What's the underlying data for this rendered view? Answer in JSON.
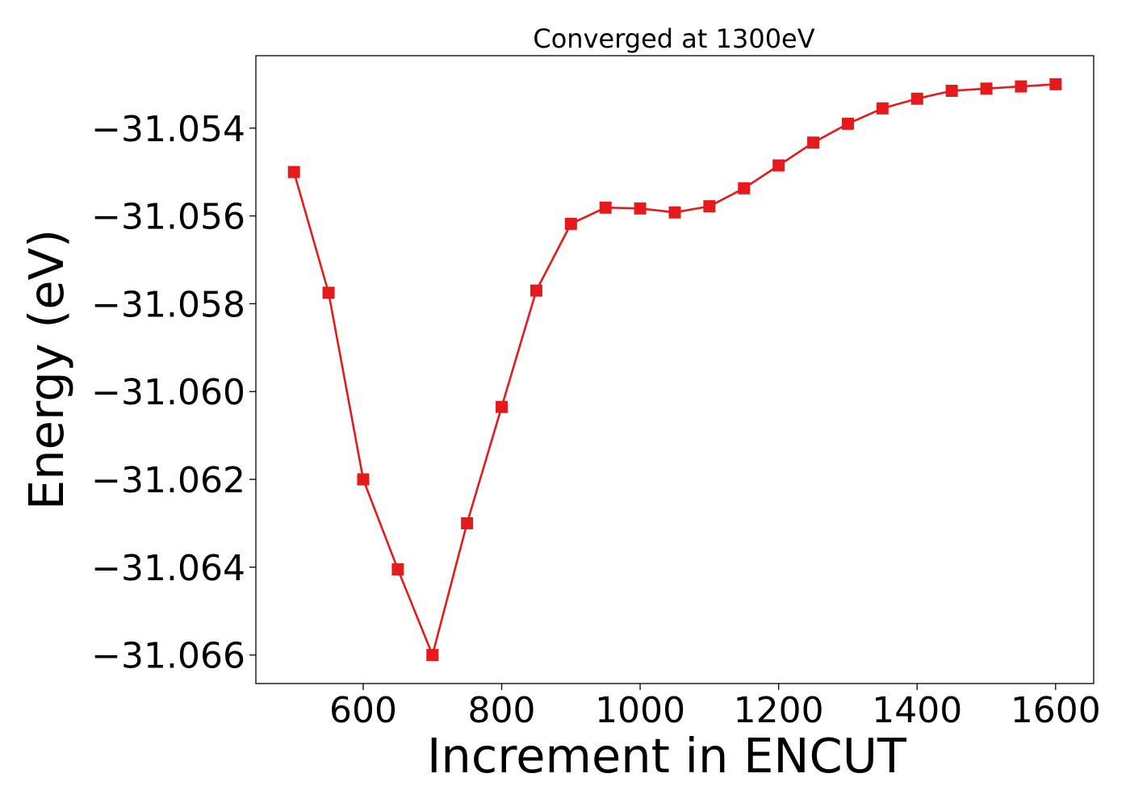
{
  "chart_data": {
    "type": "line",
    "title": "Converged at 1300eV",
    "xlabel": "Increment in ENCUT",
    "ylabel": "Energy (eV)",
    "xlim": [
      445,
      1655
    ],
    "ylim": [
      -31.06665,
      -31.05235
    ],
    "xticks": [
      600,
      800,
      1000,
      1200,
      1400,
      1600
    ],
    "xtick_labels": [
      "600",
      "800",
      "1000",
      "1200",
      "1400",
      "1600"
    ],
    "yticks": [
      -31.054,
      -31.056,
      -31.058,
      -31.06,
      -31.062,
      -31.064,
      -31.066
    ],
    "ytick_labels": [
      "−31.054",
      "−31.056",
      "−31.058",
      "−31.060",
      "−31.062",
      "−31.064",
      "−31.066"
    ],
    "grid": false,
    "legend": false,
    "series": [
      {
        "color": "#e41a1c",
        "marker": "square",
        "x": [
          500,
          550,
          600,
          650,
          700,
          750,
          800,
          850,
          900,
          950,
          1000,
          1050,
          1100,
          1150,
          1200,
          1250,
          1300,
          1350,
          1400,
          1450,
          1500,
          1550,
          1600
        ],
        "y": [
          -31.055,
          -31.05775,
          -31.062,
          -31.06405,
          -31.066,
          -31.063,
          -31.06035,
          -31.0577,
          -31.05618,
          -31.05581,
          -31.05583,
          -31.05592,
          -31.05578,
          -31.05537,
          -31.05485,
          -31.05433,
          -31.0539,
          -31.05355,
          -31.05333,
          -31.05315,
          -31.0531,
          -31.05305,
          -31.053
        ]
      }
    ]
  }
}
